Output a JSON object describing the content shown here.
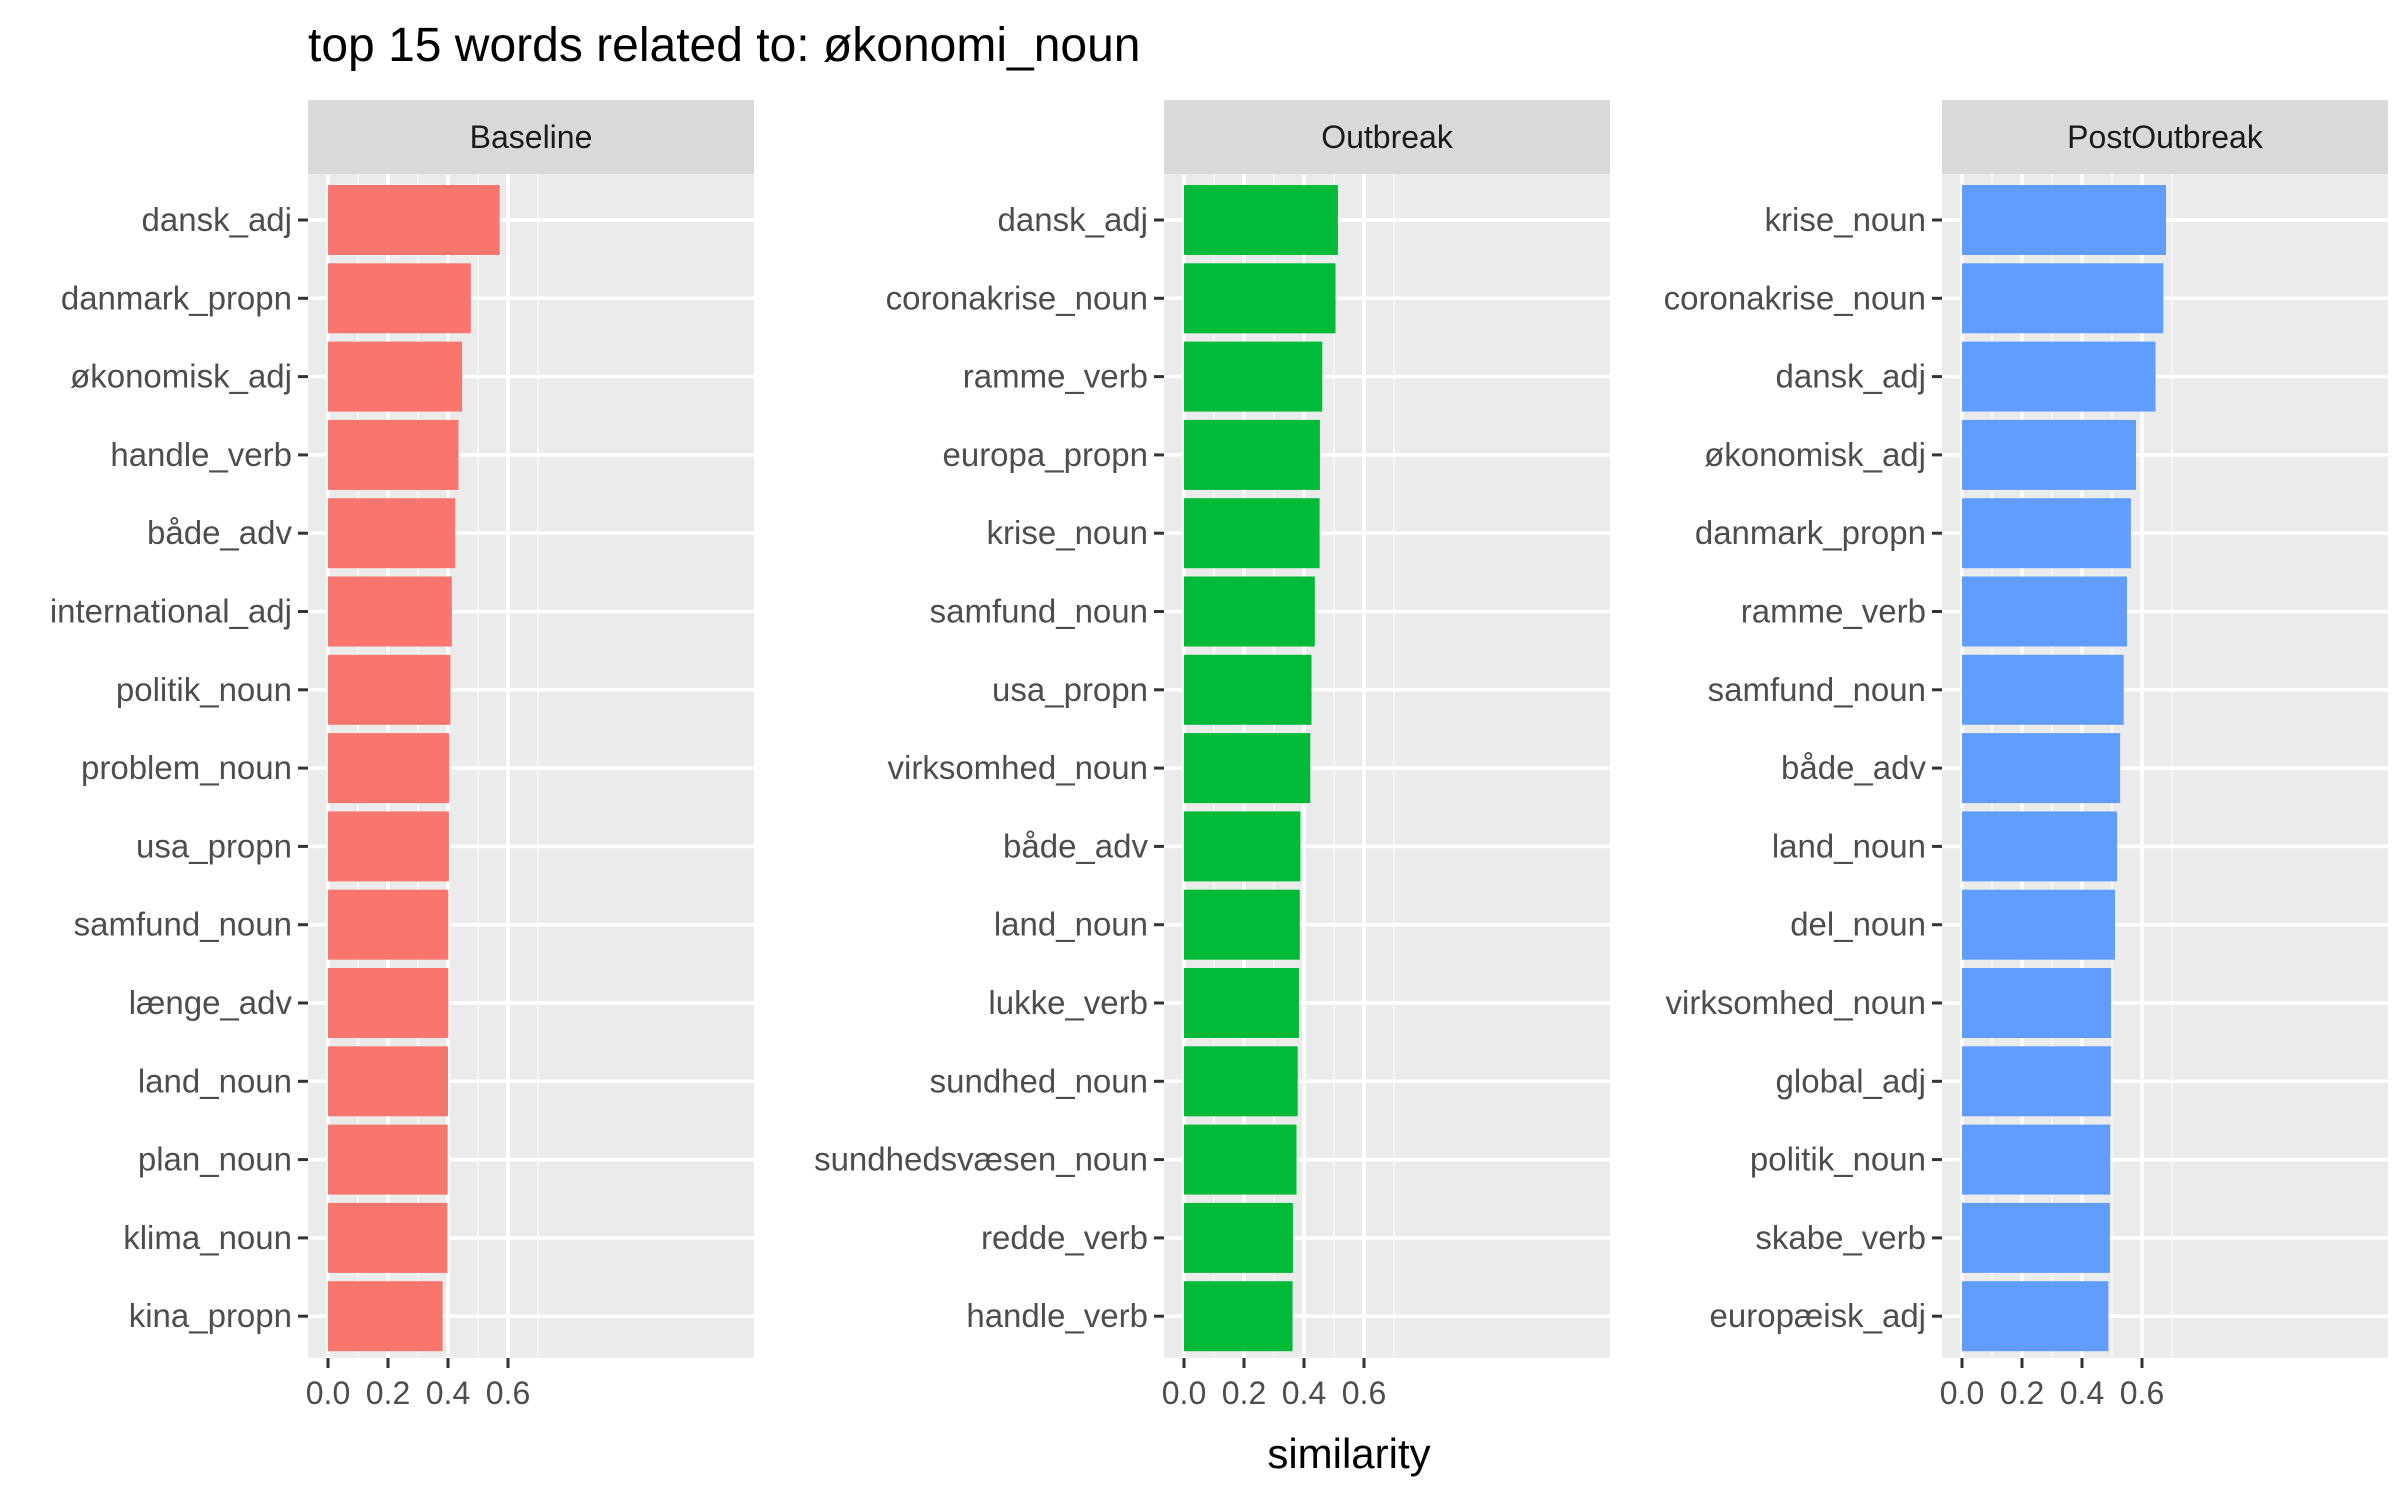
{
  "chart_data": {
    "type": "bar",
    "orientation": "horizontal",
    "title": "top 15 words related to: økonomi_noun",
    "xlabel": "similarity",
    "ylabel": "",
    "xlim": [
      0,
      0.7
    ],
    "xticks": [
      "0.0",
      "0.2",
      "0.4",
      "0.6"
    ],
    "grid": true,
    "legend": "none",
    "background": "#EBEBEB",
    "strip_fill": "#D9D9D9",
    "facets": [
      {
        "name": "Baseline",
        "color": "#F8766D",
        "categories": [
          "dansk_adj",
          "danmark_propn",
          "økonomisk_adj",
          "handle_verb",
          "både_adv",
          "international_adj",
          "politik_noun",
          "problem_noun",
          "usa_propn",
          "samfund_noun",
          "længe_adv",
          "land_noun",
          "plan_noun",
          "klima_noun",
          "kina_propn"
        ],
        "values": [
          0.572,
          0.476,
          0.447,
          0.435,
          0.424,
          0.413,
          0.408,
          0.404,
          0.403,
          0.401,
          0.401,
          0.4,
          0.399,
          0.398,
          0.382
        ]
      },
      {
        "name": "Outbreak",
        "color": "#00BA38",
        "categories": [
          "dansk_adj",
          "coronakrise_noun",
          "ramme_verb",
          "europa_propn",
          "krise_noun",
          "samfund_noun",
          "usa_propn",
          "virksomhed_noun",
          "både_adv",
          "land_noun",
          "lukke_verb",
          "sundhed_noun",
          "sundhedsvæsen_noun",
          "redde_verb",
          "handle_verb"
        ],
        "values": [
          0.513,
          0.505,
          0.461,
          0.453,
          0.452,
          0.436,
          0.425,
          0.421,
          0.388,
          0.386,
          0.383,
          0.379,
          0.375,
          0.363,
          0.362
        ]
      },
      {
        "name": "PostOutbreak",
        "color": "#619CFF",
        "categories": [
          "krise_noun",
          "coronakrise_noun",
          "dansk_adj",
          "økonomisk_adj",
          "danmark_propn",
          "ramme_verb",
          "samfund_noun",
          "både_adv",
          "land_noun",
          "del_noun",
          "virksomhed_noun",
          "global_adj",
          "politik_noun",
          "skabe_verb",
          "europæisk_adj"
        ],
        "values": [
          0.68,
          0.671,
          0.645,
          0.58,
          0.563,
          0.55,
          0.539,
          0.527,
          0.517,
          0.51,
          0.497,
          0.496,
          0.494,
          0.493,
          0.488
        ]
      }
    ]
  }
}
